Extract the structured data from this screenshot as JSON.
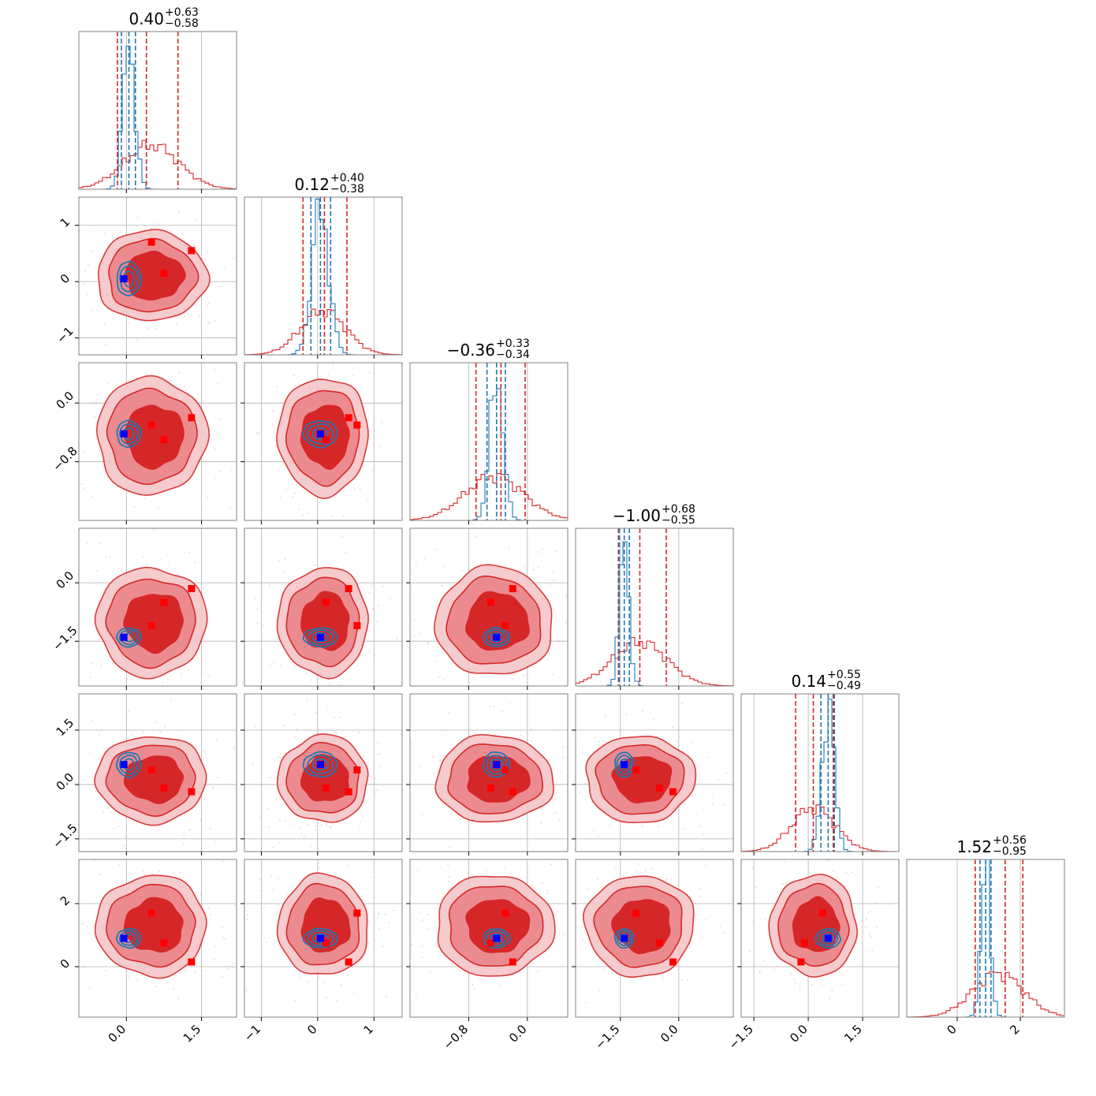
{
  "chart_data": {
    "type": "corner",
    "parameter_count": 6,
    "colors": {
      "red": "#d62728",
      "blue": "#1f77b4",
      "marker_red": "#ff0000",
      "marker_blue": "#0000ff",
      "grid": "#b0b0b0"
    },
    "axes": [
      {
        "range": [
          -0.95,
          2.2
        ],
        "ticks": [
          0.0,
          1.5
        ],
        "tick_labels": [
          "0.0",
          "1.5"
        ]
      },
      {
        "range": [
          -1.3,
          1.5
        ],
        "ticks": [
          -1,
          0,
          1
        ],
        "tick_labels": [
          "−1",
          "0",
          "1"
        ]
      },
      {
        "range": [
          -1.6,
          0.55
        ],
        "ticks": [
          -0.8,
          0.0
        ],
        "tick_labels": [
          "−0.8",
          "0.0"
        ]
      },
      {
        "range": [
          -2.65,
          1.4
        ],
        "ticks": [
          -1.5,
          0.0
        ],
        "tick_labels": [
          "−1.5",
          "0.0"
        ]
      },
      {
        "range": [
          -1.85,
          2.5
        ],
        "ticks": [
          -1.5,
          0.0,
          1.5
        ],
        "tick_labels": [
          "−1.5",
          "0.0",
          "1.5"
        ]
      },
      {
        "range": [
          -1.6,
          3.4
        ],
        "ticks": [
          0,
          2
        ],
        "tick_labels": [
          "0",
          "2"
        ]
      }
    ],
    "titles": [
      {
        "main": "0.40",
        "plus": "+0.63",
        "minus": "−0.58"
      },
      {
        "main": "0.12",
        "plus": "+0.40",
        "minus": "−0.38"
      },
      {
        "main": "−0.36",
        "plus": "+0.33",
        "minus": "−0.34"
      },
      {
        "main": "−1.00",
        "plus": "+0.68",
        "minus": "−0.55"
      },
      {
        "main": "0.14",
        "plus": "+0.55",
        "minus": "−0.49"
      },
      {
        "main": "1.52",
        "plus": "+0.56",
        "minus": "−0.95"
      }
    ],
    "red_posterior": {
      "center": [
        0.5,
        0.1,
        -0.45,
        -1.0,
        0.15,
        1.3
      ],
      "sigma": [
        0.55,
        0.4,
        0.4,
        0.7,
        0.6,
        0.8
      ],
      "quantiles": [
        [
          -0.18,
          0.4,
          1.03
        ],
        [
          -0.26,
          0.12,
          0.52
        ],
        [
          -0.7,
          -0.36,
          -0.03
        ],
        [
          -1.55,
          -1.0,
          -0.32
        ],
        [
          -0.35,
          0.14,
          0.69
        ],
        [
          0.57,
          1.52,
          2.08
        ]
      ]
    },
    "blue_posterior": {
      "center": [
        0.05,
        0.05,
        -0.42,
        -1.4,
        0.55,
        0.9
      ],
      "sigma": [
        0.12,
        0.15,
        0.09,
        0.12,
        0.17,
        0.15
      ],
      "quantiles": [
        [
          -0.1,
          0.05,
          0.18
        ],
        [
          -0.12,
          0.05,
          0.23
        ],
        [
          -0.55,
          -0.42,
          -0.3
        ],
        [
          -1.53,
          -1.4,
          -1.27
        ],
        [
          0.35,
          0.55,
          0.72
        ],
        [
          0.72,
          0.9,
          1.07
        ]
      ]
    },
    "truth_blue": [
      -0.05,
      0.05,
      -0.42,
      -1.4,
      0.55,
      0.9
    ],
    "truth_red": [
      [
        0.5,
        0.7,
        -0.3,
        -1.1,
        0.4,
        1.7
      ],
      [
        0.75,
        0.15,
        -0.5,
        -0.5,
        -0.1,
        0.75
      ],
      [
        1.3,
        0.55,
        -0.2,
        -0.15,
        -0.2,
        0.15
      ]
    ]
  }
}
